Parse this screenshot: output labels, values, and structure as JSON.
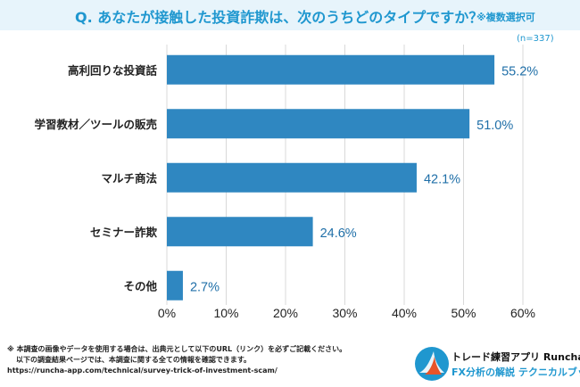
{
  "header": {
    "title": "Q. あなたが接触した投資詐欺は、次のうちどのタイプですか？",
    "multi_select": "※複数選択可"
  },
  "sample_size": "(n=337)",
  "chart_data": {
    "type": "bar",
    "orientation": "horizontal",
    "categories": [
      "高利回りな投資話",
      "学習教材／ツールの販売",
      "マルチ商法",
      "セミナー詐欺",
      "その他"
    ],
    "values": [
      55.2,
      51.0,
      42.1,
      24.6,
      2.7
    ],
    "value_labels": [
      "55.2%",
      "51.0%",
      "42.1%",
      "24.6%",
      "2.7%"
    ],
    "xlim": [
      0,
      60
    ],
    "ticks": [
      0,
      10,
      20,
      30,
      40,
      50,
      60
    ],
    "tick_labels": [
      "0%",
      "10%",
      "20%",
      "30%",
      "40%",
      "50%",
      "60%"
    ],
    "bar_color": "#2f87c1",
    "grid": true
  },
  "footer": {
    "line1": "※ 本調査の画像やデータを使用する場合は、出典元として以下のURL（リンク）を必ずご記載ください。",
    "line2": "以下の調査結果ページでは、本調査に関する全ての情報を確認できます。",
    "url": "https://runcha-app.com/technical/survey-trick-of-investment-scam/"
  },
  "brand": {
    "app_name": "トレード練習アプリ Runcha",
    "tagline": "FX分析の解説 テクニカルブック"
  },
  "colors": {
    "accent": "#1f97cf",
    "header_bg": "#e7f4fb",
    "bar": "#2f87c1",
    "grid": "#d9d9d9"
  }
}
